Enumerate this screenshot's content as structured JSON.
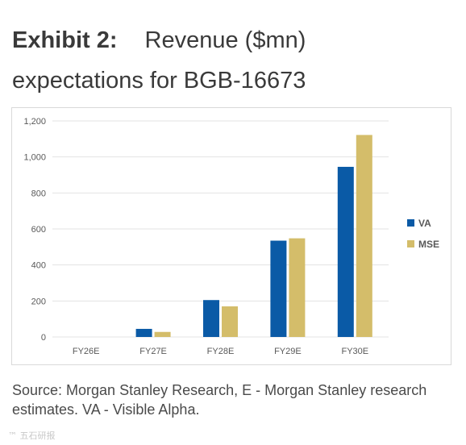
{
  "title": {
    "label": "Exhibit 2:",
    "line1_rest": "Revenue ($mn)",
    "line2": "expectations for BGB-16673"
  },
  "source_note": "Source: Morgan Stanley Research, E - Morgan Stanley research estimates. VA - Visible Alpha.",
  "watermark": "™ 五石研报",
  "colors": {
    "VA": "#0a5aa6",
    "MSE": "#d4bd6a",
    "axis_text": "#595959",
    "grid": "#e3e3e3"
  },
  "chart_data": {
    "type": "bar",
    "categories": [
      "FY26E",
      "FY27E",
      "FY28E",
      "FY29E",
      "FY30E"
    ],
    "series": [
      {
        "name": "VA",
        "values": [
          0,
          45,
          205,
          535,
          945
        ]
      },
      {
        "name": "MSE",
        "values": [
          0,
          28,
          170,
          548,
          1122
        ]
      }
    ],
    "yticks": [
      "0",
      "200",
      "400",
      "600",
      "800",
      "1,000",
      "1,200"
    ],
    "ylim": [
      0,
      1200
    ],
    "grid": true,
    "legend_position": "right"
  }
}
